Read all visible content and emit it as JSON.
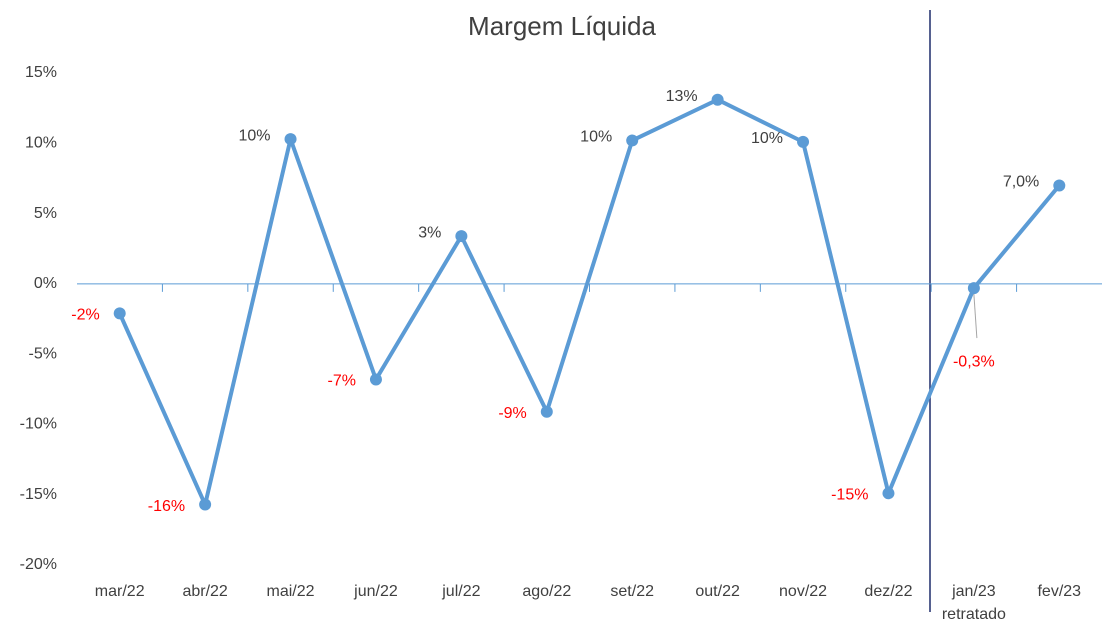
{
  "chart_data": {
    "type": "line",
    "title": "Margem Líquida",
    "categories": [
      "mar/22",
      "abr/22",
      "mai/22",
      "jun/22",
      "jul/22",
      "ago/22",
      "set/22",
      "out/22",
      "nov/22",
      "dez/22",
      "jan/23\nretratado",
      "fev/23"
    ],
    "series": [
      {
        "name": "Margem Líquida",
        "color": "#5b9bd5",
        "values": [
          -2.1,
          -15.7,
          10.3,
          -6.8,
          3.4,
          -9.1,
          10.2,
          13.1,
          10.1,
          -14.9,
          -0.3,
          7.0
        ],
        "value_labels": [
          "-2%",
          "-16%",
          "10%",
          "-7%",
          "3%",
          "-9%",
          "10%",
          "13%",
          "10%",
          "-15%",
          "-0,3%",
          "7,0%"
        ]
      }
    ],
    "value_label_colors": {
      "positive": "#404040",
      "negative": "#ff0000"
    },
    "ylim": [
      -20,
      15
    ],
    "yticks": [
      {
        "value": -20,
        "label": "-20%"
      },
      {
        "value": -15,
        "label": "-15%"
      },
      {
        "value": -10,
        "label": "-10%"
      },
      {
        "value": -5,
        "label": "-5%"
      },
      {
        "value": 0,
        "label": "0%"
      },
      {
        "value": 5,
        "label": "5%"
      },
      {
        "value": 10,
        "label": "10%"
      },
      {
        "value": 15,
        "label": "15%"
      }
    ],
    "grid": false
  }
}
